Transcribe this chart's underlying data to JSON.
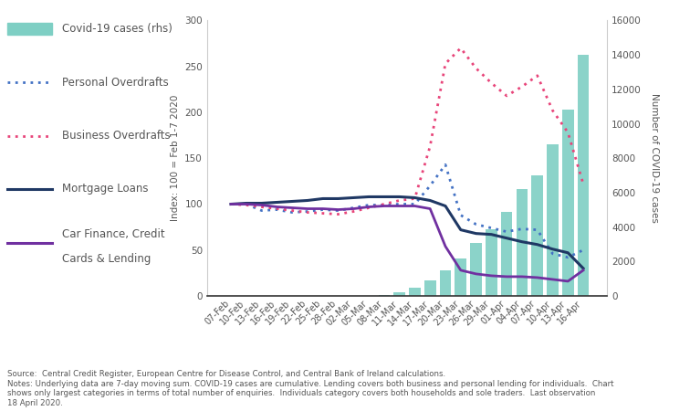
{
  "dates": [
    "07-Feb",
    "10-Feb",
    "13-Feb",
    "16-Feb",
    "19-Feb",
    "22-Feb",
    "25-Feb",
    "28-Feb",
    "02-Mar",
    "05-Mar",
    "08-Mar",
    "11-Mar",
    "14-Mar",
    "17-Mar",
    "20-Mar",
    "23-Mar",
    "26-Mar",
    "29-Mar",
    "01-Apr",
    "04-Apr",
    "07-Apr",
    "10-Apr",
    "13-Apr",
    "16-Apr"
  ],
  "personal_overdrafts": [
    100,
    100,
    93,
    94,
    91,
    92,
    94,
    93,
    96,
    99,
    99,
    100,
    100,
    120,
    143,
    88,
    78,
    74,
    70,
    73,
    72,
    46,
    42,
    50
  ],
  "business_overdrafts": [
    100,
    99,
    97,
    95,
    93,
    91,
    90,
    89,
    92,
    96,
    100,
    104,
    106,
    163,
    253,
    270,
    248,
    232,
    218,
    228,
    240,
    202,
    178,
    122
  ],
  "mortgage_loans": [
    100,
    101,
    101,
    102,
    103,
    104,
    106,
    106,
    107,
    108,
    108,
    108,
    107,
    104,
    98,
    72,
    68,
    67,
    63,
    59,
    56,
    51,
    47,
    30
  ],
  "car_finance": [
    100,
    100,
    99,
    97,
    96,
    95,
    95,
    94,
    95,
    97,
    98,
    98,
    98,
    95,
    54,
    28,
    24,
    22,
    21,
    21,
    20,
    18,
    16,
    28
  ],
  "covid_bar_values": [
    0,
    0,
    0,
    0,
    0,
    0,
    0,
    0,
    0,
    0,
    50,
    200,
    500,
    900,
    1500,
    2200,
    3100,
    3900,
    4900,
    6200,
    7000,
    8800,
    10800,
    14000
  ],
  "ylim_left": [
    0,
    300
  ],
  "ylim_right": [
    0,
    16000
  ],
  "yticks_left": [
    0,
    50,
    100,
    150,
    200,
    250,
    300
  ],
  "yticks_right": [
    0,
    2000,
    4000,
    6000,
    8000,
    10000,
    12000,
    14000,
    16000
  ],
  "ylabel_left": "Index: 100 = Feb 1-7 2020",
  "ylabel_right": "Number of COVID-19 cases",
  "bar_color": "#7ecfc4",
  "personal_color": "#4472c4",
  "business_color": "#e8457a",
  "mortgage_color": "#1f3864",
  "car_color": "#7030a0",
  "source_text": "Source:  Central Credit Register, European Centre for Disease Control, and Central Bank of Ireland calculations.\nNotes: Underlying data are 7-day moving sum. COVID-19 cases are cumulative. Lending covers both business and personal lending for individuals.  Chart\nshows only largest categories in terms of total number of enquiries.  Individuals category covers both households and sole traders.  Last observation\n18 April 2020."
}
